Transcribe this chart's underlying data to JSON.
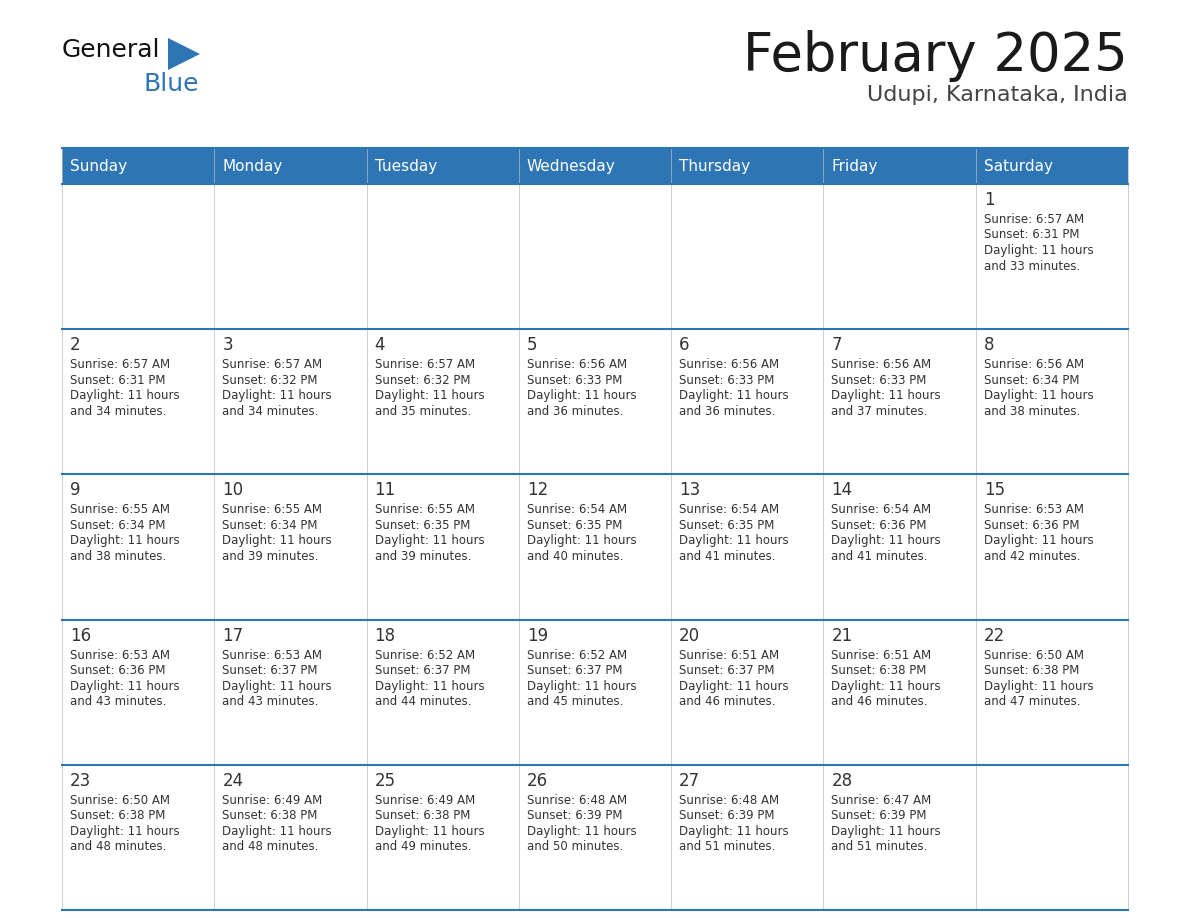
{
  "title": "February 2025",
  "subtitle": "Udupi, Karnataka, India",
  "header_bg": "#2e75b6",
  "header_text_color": "#ffffff",
  "cell_bg": "#ffffff",
  "day_num_color": "#333333",
  "cell_text_color": "#333333",
  "border_top_color": "#2e75b6",
  "border_inner_color": "#2e75b6",
  "title_color": "#1a1a1a",
  "subtitle_color": "#444444",
  "logo_general_color": "#111111",
  "logo_blue_color": "#2e75b6",
  "day_headers": [
    "Sunday",
    "Monday",
    "Tuesday",
    "Wednesday",
    "Thursday",
    "Friday",
    "Saturday"
  ],
  "calendar_data": [
    [
      null,
      null,
      null,
      null,
      null,
      null,
      {
        "day": "1",
        "sunrise": "6:57 AM",
        "sunset": "6:31 PM",
        "daylight": "11 hours and 33 minutes."
      }
    ],
    [
      {
        "day": "2",
        "sunrise": "6:57 AM",
        "sunset": "6:31 PM",
        "daylight": "11 hours and 34 minutes."
      },
      {
        "day": "3",
        "sunrise": "6:57 AM",
        "sunset": "6:32 PM",
        "daylight": "11 hours and 34 minutes."
      },
      {
        "day": "4",
        "sunrise": "6:57 AM",
        "sunset": "6:32 PM",
        "daylight": "11 hours and 35 minutes."
      },
      {
        "day": "5",
        "sunrise": "6:56 AM",
        "sunset": "6:33 PM",
        "daylight": "11 hours and 36 minutes."
      },
      {
        "day": "6",
        "sunrise": "6:56 AM",
        "sunset": "6:33 PM",
        "daylight": "11 hours and 36 minutes."
      },
      {
        "day": "7",
        "sunrise": "6:56 AM",
        "sunset": "6:33 PM",
        "daylight": "11 hours and 37 minutes."
      },
      {
        "day": "8",
        "sunrise": "6:56 AM",
        "sunset": "6:34 PM",
        "daylight": "11 hours and 38 minutes."
      }
    ],
    [
      {
        "day": "9",
        "sunrise": "6:55 AM",
        "sunset": "6:34 PM",
        "daylight": "11 hours and 38 minutes."
      },
      {
        "day": "10",
        "sunrise": "6:55 AM",
        "sunset": "6:34 PM",
        "daylight": "11 hours and 39 minutes."
      },
      {
        "day": "11",
        "sunrise": "6:55 AM",
        "sunset": "6:35 PM",
        "daylight": "11 hours and 39 minutes."
      },
      {
        "day": "12",
        "sunrise": "6:54 AM",
        "sunset": "6:35 PM",
        "daylight": "11 hours and 40 minutes."
      },
      {
        "day": "13",
        "sunrise": "6:54 AM",
        "sunset": "6:35 PM",
        "daylight": "11 hours and 41 minutes."
      },
      {
        "day": "14",
        "sunrise": "6:54 AM",
        "sunset": "6:36 PM",
        "daylight": "11 hours and 41 minutes."
      },
      {
        "day": "15",
        "sunrise": "6:53 AM",
        "sunset": "6:36 PM",
        "daylight": "11 hours and 42 minutes."
      }
    ],
    [
      {
        "day": "16",
        "sunrise": "6:53 AM",
        "sunset": "6:36 PM",
        "daylight": "11 hours and 43 minutes."
      },
      {
        "day": "17",
        "sunrise": "6:53 AM",
        "sunset": "6:37 PM",
        "daylight": "11 hours and 43 minutes."
      },
      {
        "day": "18",
        "sunrise": "6:52 AM",
        "sunset": "6:37 PM",
        "daylight": "11 hours and 44 minutes."
      },
      {
        "day": "19",
        "sunrise": "6:52 AM",
        "sunset": "6:37 PM",
        "daylight": "11 hours and 45 minutes."
      },
      {
        "day": "20",
        "sunrise": "6:51 AM",
        "sunset": "6:37 PM",
        "daylight": "11 hours and 46 minutes."
      },
      {
        "day": "21",
        "sunrise": "6:51 AM",
        "sunset": "6:38 PM",
        "daylight": "11 hours and 46 minutes."
      },
      {
        "day": "22",
        "sunrise": "6:50 AM",
        "sunset": "6:38 PM",
        "daylight": "11 hours and 47 minutes."
      }
    ],
    [
      {
        "day": "23",
        "sunrise": "6:50 AM",
        "sunset": "6:38 PM",
        "daylight": "11 hours and 48 minutes."
      },
      {
        "day": "24",
        "sunrise": "6:49 AM",
        "sunset": "6:38 PM",
        "daylight": "11 hours and 48 minutes."
      },
      {
        "day": "25",
        "sunrise": "6:49 AM",
        "sunset": "6:38 PM",
        "daylight": "11 hours and 49 minutes."
      },
      {
        "day": "26",
        "sunrise": "6:48 AM",
        "sunset": "6:39 PM",
        "daylight": "11 hours and 50 minutes."
      },
      {
        "day": "27",
        "sunrise": "6:48 AM",
        "sunset": "6:39 PM",
        "daylight": "11 hours and 51 minutes."
      },
      {
        "day": "28",
        "sunrise": "6:47 AM",
        "sunset": "6:39 PM",
        "daylight": "11 hours and 51 minutes."
      },
      null
    ]
  ]
}
